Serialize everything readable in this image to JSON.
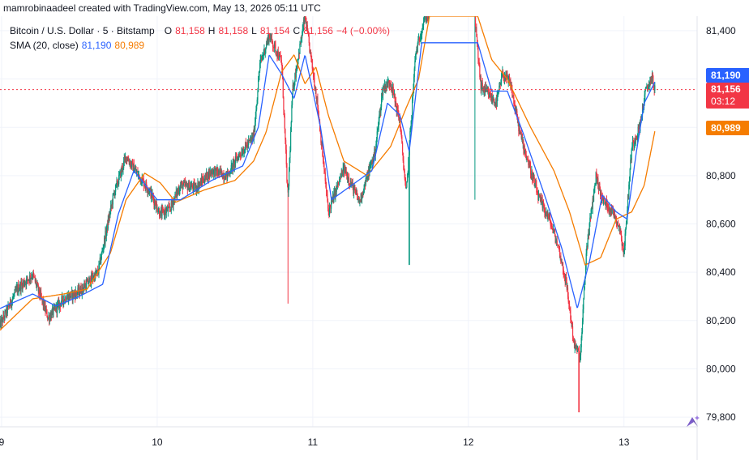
{
  "header": {
    "attribution": "mamrobinaadeel created with TradingView.com, May 13, 2026 05:11 UTC"
  },
  "legend": {
    "symbol": "Bitcoin / U.S. Dollar · 5 · Bitstamp",
    "open_label": "O",
    "open": "81,158",
    "high_label": "H",
    "high": "81,158",
    "low_label": "L",
    "low": "81,154",
    "close_label": "C",
    "close": "81,156",
    "change": "−4 (−0.00%)",
    "sma_label": "SMA (20, close)",
    "sma_fast": "81,190",
    "sma_slow": "80,989"
  },
  "price_tags": {
    "sma_fast": "81,190",
    "last_price": "81,156",
    "countdown": "03:12",
    "sma_slow": "80,989"
  },
  "colors": {
    "up": "#089981",
    "down": "#f23645",
    "sma_fast": "#2962ff",
    "sma_slow": "#f57c00",
    "grid": "#f0f3fa",
    "text": "#131722"
  },
  "chart_data": {
    "type": "candlestick",
    "ylim": [
      79760,
      81460
    ],
    "y_ticks": [
      "81,400",
      "81,200",
      "81,000",
      "80,800",
      "80,600",
      "80,400",
      "80,200",
      "80,000",
      "79,800"
    ],
    "y_tick_values": [
      81400,
      81200,
      81000,
      80800,
      80600,
      80400,
      80200,
      80000,
      79800
    ],
    "x_ticks": [
      "9",
      "10",
      "11",
      "12",
      "13"
    ],
    "x_tick_values": [
      9,
      10,
      11,
      12,
      13
    ],
    "xlim": [
      8.99,
      13.47
    ],
    "last_price": 81156,
    "grid": true,
    "price_anchors": [
      [
        8.99,
        80180
      ],
      [
        9.1,
        80330
      ],
      [
        9.2,
        80390
      ],
      [
        9.3,
        80210
      ],
      [
        9.4,
        80290
      ],
      [
        9.5,
        80320
      ],
      [
        9.62,
        80400
      ],
      [
        9.72,
        80720
      ],
      [
        9.8,
        80880
      ],
      [
        9.88,
        80800
      ],
      [
        9.95,
        80740
      ],
      [
        10.02,
        80640
      ],
      [
        10.08,
        80660
      ],
      [
        10.15,
        80760
      ],
      [
        10.25,
        80750
      ],
      [
        10.35,
        80820
      ],
      [
        10.45,
        80800
      ],
      [
        10.52,
        80880
      ],
      [
        10.62,
        80960
      ],
      [
        10.66,
        81260
      ],
      [
        10.72,
        81380
      ],
      [
        10.8,
        81270
      ],
      [
        10.84,
        80700
      ],
      [
        10.87,
        81150
      ],
      [
        10.95,
        81460
      ],
      [
        11.03,
        81100
      ],
      [
        11.1,
        80650
      ],
      [
        11.2,
        80830
      ],
      [
        11.3,
        80690
      ],
      [
        11.4,
        80900
      ],
      [
        11.45,
        81160
      ],
      [
        11.5,
        81190
      ],
      [
        11.56,
        81020
      ],
      [
        11.6,
        80720
      ],
      [
        11.66,
        81300
      ],
      [
        11.72,
        81460
      ],
      [
        12.04,
        81460
      ],
      [
        12.08,
        81170
      ],
      [
        12.18,
        81100
      ],
      [
        12.22,
        81220
      ],
      [
        12.27,
        81180
      ],
      [
        12.33,
        80980
      ],
      [
        12.4,
        80820
      ],
      [
        12.45,
        80710
      ],
      [
        12.52,
        80620
      ],
      [
        12.58,
        80500
      ],
      [
        12.63,
        80350
      ],
      [
        12.68,
        80100
      ],
      [
        12.72,
        80050
      ],
      [
        12.76,
        80500
      ],
      [
        12.82,
        80800
      ],
      [
        12.86,
        80700
      ],
      [
        12.93,
        80650
      ],
      [
        12.97,
        80590
      ],
      [
        13.0,
        80480
      ],
      [
        13.05,
        80920
      ],
      [
        13.1,
        81000
      ],
      [
        13.14,
        81150
      ],
      [
        13.18,
        81210
      ],
      [
        13.2,
        81150
      ]
    ],
    "sma_fast_anchors": [
      [
        8.99,
        80250
      ],
      [
        9.2,
        80310
      ],
      [
        9.35,
        80260
      ],
      [
        9.5,
        80300
      ],
      [
        9.65,
        80350
      ],
      [
        9.75,
        80640
      ],
      [
        9.85,
        80820
      ],
      [
        10.0,
        80700
      ],
      [
        10.15,
        80700
      ],
      [
        10.35,
        80780
      ],
      [
        10.55,
        80840
      ],
      [
        10.65,
        81000
      ],
      [
        10.72,
        81300
      ],
      [
        10.8,
        81220
      ],
      [
        10.88,
        81120
      ],
      [
        10.95,
        81300
      ],
      [
        11.05,
        81000
      ],
      [
        11.12,
        80700
      ],
      [
        11.25,
        80760
      ],
      [
        11.38,
        80820
      ],
      [
        11.48,
        81100
      ],
      [
        11.56,
        81050
      ],
      [
        11.62,
        80900
      ],
      [
        11.7,
        81350
      ],
      [
        12.06,
        81350
      ],
      [
        12.15,
        81150
      ],
      [
        12.25,
        81150
      ],
      [
        12.35,
        80980
      ],
      [
        12.5,
        80700
      ],
      [
        12.6,
        80500
      ],
      [
        12.7,
        80250
      ],
      [
        12.78,
        80450
      ],
      [
        12.86,
        80720
      ],
      [
        12.95,
        80650
      ],
      [
        13.02,
        80620
      ],
      [
        13.08,
        80900
      ],
      [
        13.13,
        81100
      ],
      [
        13.2,
        81190
      ]
    ],
    "sma_slow_anchors": [
      [
        8.99,
        80160
      ],
      [
        9.2,
        80290
      ],
      [
        9.4,
        80310
      ],
      [
        9.55,
        80330
      ],
      [
        9.7,
        80480
      ],
      [
        9.8,
        80700
      ],
      [
        9.92,
        80810
      ],
      [
        10.02,
        80770
      ],
      [
        10.12,
        80690
      ],
      [
        10.3,
        80740
      ],
      [
        10.5,
        80780
      ],
      [
        10.62,
        80860
      ],
      [
        10.7,
        80980
      ],
      [
        10.8,
        81230
      ],
      [
        10.88,
        81300
      ],
      [
        10.95,
        81180
      ],
      [
        11.02,
        81250
      ],
      [
        11.1,
        81050
      ],
      [
        11.2,
        80860
      ],
      [
        11.35,
        80800
      ],
      [
        11.5,
        80920
      ],
      [
        11.6,
        81080
      ],
      [
        11.68,
        81200
      ],
      [
        11.75,
        81460
      ],
      [
        12.06,
        81460
      ],
      [
        12.15,
        81280
      ],
      [
        12.25,
        81200
      ],
      [
        12.4,
        81000
      ],
      [
        12.55,
        80820
      ],
      [
        12.65,
        80650
      ],
      [
        12.75,
        80430
      ],
      [
        12.85,
        80460
      ],
      [
        12.95,
        80620
      ],
      [
        13.05,
        80650
      ],
      [
        13.13,
        80760
      ],
      [
        13.2,
        80989
      ]
    ]
  }
}
